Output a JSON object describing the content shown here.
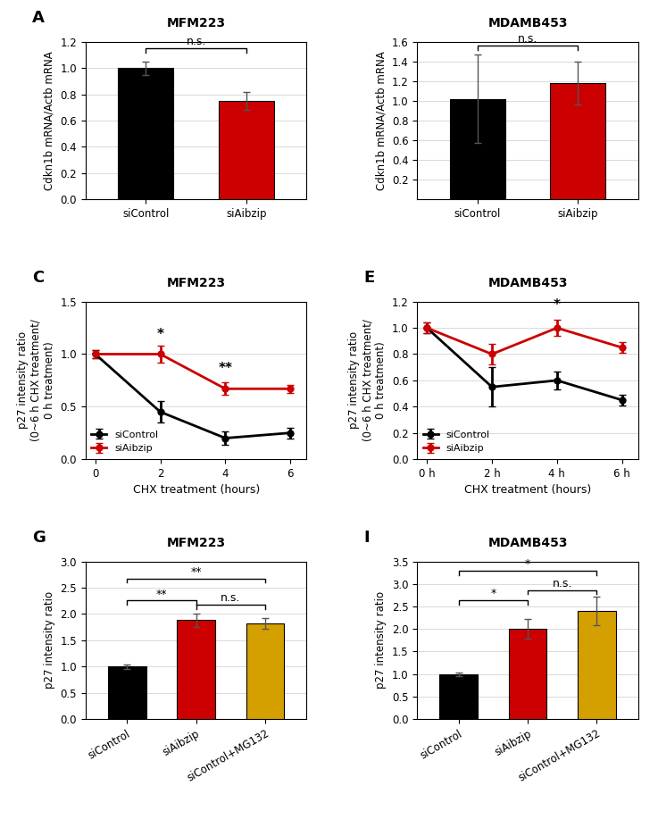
{
  "chart_data": [
    {
      "type": "bar",
      "title": "MFM223",
      "panel_label": "A",
      "categories": [
        "siControl",
        "siAibzip"
      ],
      "values": [
        1.0,
        0.75
      ],
      "errors": [
        0.05,
        0.07
      ],
      "colors": [
        "#000000",
        "#cc0000"
      ],
      "ylabel": "Cdkn1b mRNA/Actb mRNA",
      "ylim": [
        0,
        1.2
      ],
      "yticks": [
        0.0,
        0.2,
        0.4,
        0.6,
        0.8,
        1.0,
        1.2
      ],
      "grid": true,
      "brackets": [
        {
          "from": "siControl",
          "to": "siAibzip",
          "y": 1.12,
          "text": "n.s."
        }
      ]
    },
    {
      "type": "bar",
      "title": "MDAMB453",
      "categories": [
        "siControl",
        "siAibzip"
      ],
      "values": [
        1.02,
        1.18
      ],
      "errors": [
        0.45,
        0.22
      ],
      "colors": [
        "#000000",
        "#cc0000"
      ],
      "ylabel": "Cdkn1b mRNA/Actb mRNA",
      "ylim": [
        0,
        1.6
      ],
      "yticks": [
        0.2,
        0.4,
        0.6,
        0.8,
        1.0,
        1.2,
        1.4,
        1.6
      ],
      "grid": true,
      "brackets": [
        {
          "from": "siControl",
          "to": "siAibzip",
          "y": 1.52,
          "text": "n.s."
        }
      ]
    },
    {
      "type": "line",
      "title": "MFM223",
      "panel_label": "C",
      "x": [
        0,
        2,
        4,
        6
      ],
      "series": [
        {
          "name": "siControl",
          "color": "#000000",
          "values": [
            1.0,
            0.45,
            0.2,
            0.25
          ],
          "errors": [
            0.04,
            0.1,
            0.06,
            0.05
          ],
          "marker": "o"
        },
        {
          "name": "siAibzip",
          "color": "#cc0000",
          "values": [
            1.0,
            1.0,
            0.67,
            0.67
          ],
          "errors": [
            0.04,
            0.08,
            0.06,
            0.04
          ],
          "marker": "o"
        }
      ],
      "xlabel": "CHX treatment (hours)",
      "ylabel": "p27 intensity ratio\n(0~6 h CHX treatment/\n0 h treatment)",
      "xlim": [
        -0.3,
        6.5
      ],
      "xticks": [
        0,
        2,
        4,
        6
      ],
      "ylim": [
        0,
        1.5
      ],
      "yticks": [
        0.0,
        0.5,
        1.0,
        1.5
      ],
      "grid": true,
      "legend": "lower left",
      "annotations": [
        {
          "x": 2,
          "y": 1.12,
          "text": "*"
        },
        {
          "x": 4,
          "y": 0.8,
          "text": "**"
        }
      ]
    },
    {
      "type": "line",
      "title": "MDAMB453",
      "panel_label": "E",
      "x": [
        0,
        2,
        4,
        6
      ],
      "series": [
        {
          "name": "siControl",
          "color": "#000000",
          "values": [
            1.0,
            0.55,
            0.6,
            0.45
          ],
          "errors": [
            0.04,
            0.15,
            0.07,
            0.04
          ],
          "marker": "o"
        },
        {
          "name": "siAibzip",
          "color": "#cc0000",
          "values": [
            1.0,
            0.8,
            1.0,
            0.85
          ],
          "errors": [
            0.04,
            0.08,
            0.06,
            0.04
          ],
          "marker": "o"
        }
      ],
      "xlabel": "CHX treatment (hours)",
      "ylabel": "p27 intensity ratio\n(0~6 h CHX treatment/\n0 h treatment)",
      "xlim": [
        -0.3,
        6.5
      ],
      "xticks": [
        {
          "value": 0,
          "label": "0 h"
        },
        {
          "value": 2,
          "label": "2 h"
        },
        {
          "value": 4,
          "label": "4 h"
        },
        {
          "value": 6,
          "label": "6 h"
        }
      ],
      "ylim": [
        0,
        1.2
      ],
      "yticks": [
        0.0,
        0.2,
        0.4,
        0.6,
        0.8,
        1.0,
        1.2
      ],
      "grid": true,
      "legend": "lower left",
      "annotations": [
        {
          "x": 4,
          "y": 1.12,
          "text": "*"
        }
      ]
    },
    {
      "type": "bar",
      "title": "MFM223",
      "panel_label": "G",
      "categories": [
        "siControl",
        "siAibzip",
        "siControl+MG132"
      ],
      "values": [
        1.0,
        1.88,
        1.82
      ],
      "errors": [
        0.04,
        0.12,
        0.1
      ],
      "colors": [
        "#000000",
        "#cc0000",
        "#d4a000"
      ],
      "ylabel": "p27 intensity ratio",
      "ylim": [
        0,
        3.0
      ],
      "yticks": [
        0.0,
        0.5,
        1.0,
        1.5,
        2.0,
        2.5,
        3.0
      ],
      "grid": true,
      "brackets": [
        {
          "from": "siControl",
          "to": "siAibzip",
          "y": 2.18,
          "text": "**"
        },
        {
          "from": "siControl",
          "to": "siControl+MG132",
          "y": 2.6,
          "text": "**"
        },
        {
          "from": "siAibzip",
          "to": "siControl+MG132",
          "y": 2.1,
          "text": "n.s."
        }
      ]
    },
    {
      "type": "bar",
      "title": "MDAMB453",
      "panel_label": "I",
      "categories": [
        "siControl",
        "siAibzip",
        "siControl+MG132"
      ],
      "values": [
        1.0,
        2.0,
        2.4
      ],
      "errors": [
        0.04,
        0.22,
        0.32
      ],
      "colors": [
        "#000000",
        "#cc0000",
        "#d4a000"
      ],
      "ylabel": "p27 intensity ratio",
      "ylim": [
        0,
        3.5
      ],
      "yticks": [
        0.0,
        0.5,
        1.0,
        1.5,
        2.0,
        2.5,
        3.0,
        3.5
      ],
      "grid": true,
      "brackets": [
        {
          "from": "siControl",
          "to": "siAibzip",
          "y": 2.55,
          "text": "*"
        },
        {
          "from": "siControl",
          "to": "siControl+MG132",
          "y": 3.2,
          "text": "*"
        },
        {
          "from": "siAibzip",
          "to": "siControl+MG132",
          "y": 2.78,
          "text": "n.s."
        }
      ]
    }
  ]
}
